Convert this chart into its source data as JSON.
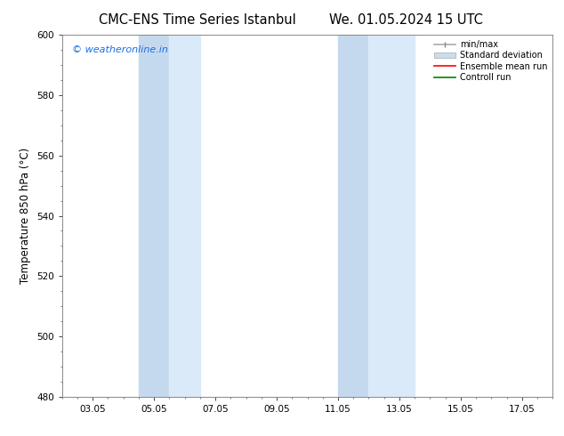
{
  "title_left": "CMC-ENS Time Series Istanbul",
  "title_right": "We. 01.05.2024 15 UTC",
  "ylabel": "Temperature 850 hPa (°C)",
  "ylim": [
    480,
    600
  ],
  "yticks": [
    480,
    500,
    520,
    540,
    560,
    580,
    600
  ],
  "xtick_labels": [
    "03.05",
    "05.05",
    "07.05",
    "09.05",
    "11.05",
    "13.05",
    "15.05",
    "17.05"
  ],
  "xtick_positions": [
    2,
    4,
    6,
    8,
    10,
    12,
    14,
    16
  ],
  "xlim": [
    1,
    17
  ],
  "band1_x1": 3.5,
  "band1_x2": 5.5,
  "band2_x1": 4.5,
  "band2_x2": 5.0,
  "band3_x1": 10.0,
  "band3_x2": 11.0,
  "band4_x1": 11.0,
  "band4_x2": 13.0,
  "band_color_dark": "#c5d9ee",
  "band_color_light": "#daeaf8",
  "watermark": "© weatheronline.in",
  "watermark_color": "#1a6fe6",
  "legend_labels": [
    "min/max",
    "Standard deviation",
    "Ensemble mean run",
    "Controll run"
  ],
  "legend_colors": [
    "#999999",
    "#bbcce0",
    "#ff0000",
    "#008000"
  ],
  "bg_color": "#ffffff",
  "title_fontsize": 10.5,
  "label_fontsize": 8.5,
  "tick_fontsize": 7.5
}
